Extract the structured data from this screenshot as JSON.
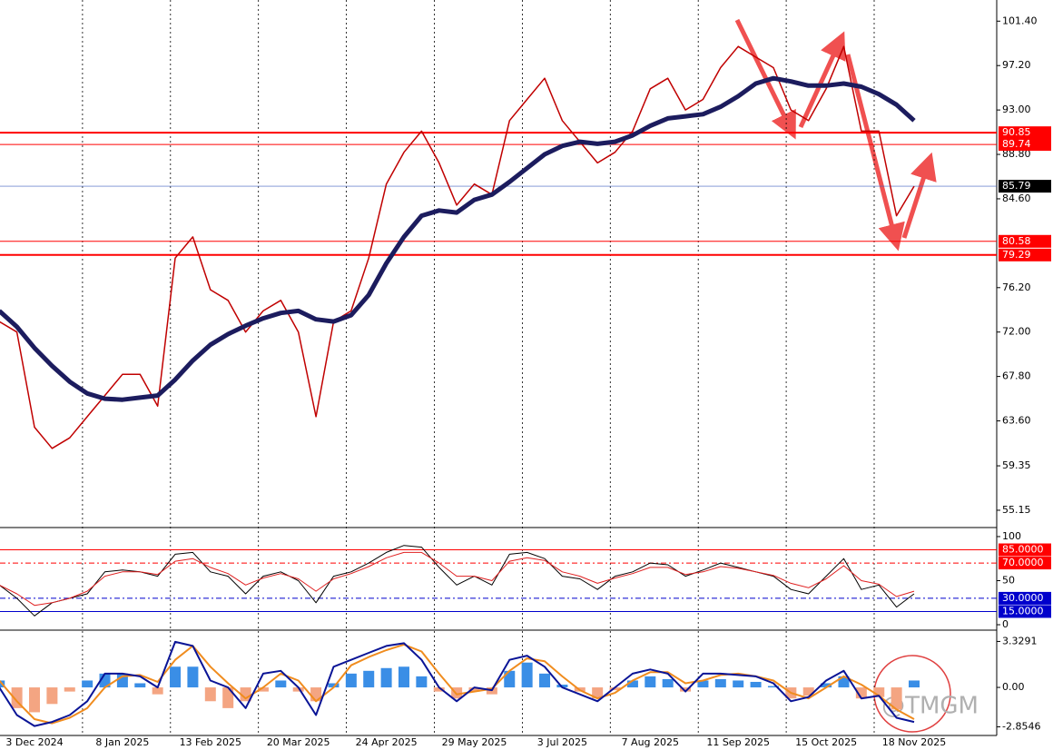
{
  "chart_data": [
    {
      "type": "line",
      "panel": "price",
      "categories": [
        null,
        null,
        "3 Dec 2024",
        null,
        null,
        null,
        null,
        "8 Jan 2025",
        null,
        null,
        null,
        null,
        "13 Feb 2025",
        null,
        null,
        null,
        null,
        "20 Mar 2025",
        null,
        null,
        null,
        null,
        "24 Apr 2025",
        null,
        null,
        null,
        null,
        "29 May 2025",
        null,
        null,
        null,
        null,
        "3 Jul 2025",
        null,
        null,
        null,
        null,
        "7 Aug 2025",
        null,
        null,
        null,
        null,
        "11 Sep 2025",
        null,
        null,
        null,
        null,
        "15 Oct 2025",
        null,
        null,
        null,
        null,
        "18 Nov 2025"
      ],
      "series": [
        {
          "color": "#c00000",
          "width": 1.5,
          "values": [
            73,
            72,
            63,
            61,
            62,
            64,
            66,
            68,
            68,
            65,
            79,
            81,
            76,
            75,
            72,
            74,
            75,
            72,
            64,
            73,
            74,
            79,
            86,
            89,
            91,
            88,
            84,
            86,
            85,
            92,
            94,
            96,
            92,
            90,
            88,
            89,
            91,
            95,
            96,
            93,
            94,
            97,
            99,
            98,
            97,
            93,
            92,
            95,
            99,
            91,
            91,
            83,
            85.79
          ]
        },
        {
          "color": "#1c1c5e",
          "width": 5,
          "values": [
            74,
            72.5,
            70.5,
            68.8,
            67.3,
            66.2,
            65.7,
            65.6,
            65.8,
            66,
            67.5,
            69.3,
            70.8,
            71.8,
            72.6,
            73.3,
            73.8,
            74,
            73.2,
            73,
            73.6,
            75.5,
            78.5,
            81,
            83,
            83.5,
            83.3,
            84.5,
            85,
            86.2,
            87.5,
            88.8,
            89.6,
            90,
            89.8,
            90,
            90.6,
            91.5,
            92.2,
            92.4,
            92.6,
            93.3,
            94.3,
            95.5,
            96,
            95.7,
            95.3,
            95.3,
            95.5,
            95.2,
            94.5,
            93.5,
            92
          ]
        }
      ],
      "ylim": [
        53.6,
        103.4
      ],
      "yticks": [
        {
          "value": 101.4,
          "label": "101.40"
        },
        {
          "value": 97.2,
          "label": "97.20"
        },
        {
          "value": 93,
          "label": "93.00"
        },
        {
          "value": 88.8,
          "label": "88.80"
        },
        {
          "value": 84.6,
          "label": "84.60"
        },
        {
          "value": 76.2,
          "label": "76.20"
        },
        {
          "value": 72,
          "label": "72.00"
        },
        {
          "value": 67.8,
          "label": "67.80"
        },
        {
          "value": 63.6,
          "label": "63.60"
        },
        59.35,
        55.15
      ],
      "levels": [
        {
          "value": 90.85,
          "color": "#ff0000",
          "style": "solid",
          "width": 2
        },
        {
          "value": 89.74,
          "color": "#ff0000",
          "style": "solid",
          "width": 1
        },
        {
          "value": 85.79,
          "color": "#4060c0",
          "style": "solid",
          "width": 0.6,
          "label_color": "#000000"
        },
        {
          "value": 80.58,
          "color": "#ff0000",
          "style": "solid",
          "width": 1
        },
        {
          "value": 79.29,
          "color": "#ff0000",
          "style": "solid",
          "width": 2
        }
      ],
      "grid": true
    },
    {
      "type": "line",
      "panel": "rsi",
      "series": [
        {
          "color": "#000000",
          "width": 1,
          "values": [
            45,
            30,
            10,
            25,
            30,
            35,
            60,
            62,
            60,
            55,
            80,
            82,
            60,
            55,
            35,
            55,
            60,
            50,
            25,
            55,
            60,
            70,
            82,
            90,
            88,
            65,
            45,
            55,
            45,
            80,
            82,
            75,
            55,
            52,
            40,
            55,
            60,
            70,
            68,
            55,
            62,
            70,
            65,
            60,
            55,
            40,
            35,
            55,
            75,
            40,
            45,
            20,
            35
          ]
        },
        {
          "color": "#e02020",
          "width": 1,
          "values": [
            45,
            35,
            22,
            25,
            30,
            38,
            55,
            60,
            60,
            57,
            72,
            75,
            65,
            58,
            45,
            53,
            58,
            52,
            38,
            52,
            58,
            66,
            76,
            82,
            82,
            70,
            55,
            55,
            50,
            72,
            76,
            73,
            60,
            55,
            47,
            53,
            58,
            65,
            65,
            57,
            60,
            66,
            64,
            60,
            56,
            47,
            42,
            52,
            67,
            50,
            46,
            32,
            38
          ]
        }
      ],
      "ylim": [
        -4.1,
        108.2
      ],
      "yticks": [
        100,
        50,
        0
      ],
      "levels": [
        {
          "value": 85,
          "label": "85.0000",
          "color": "#ff0000",
          "style": "solid",
          "width": 1
        },
        {
          "value": 70,
          "label": "70.0000",
          "color": "#ff0000",
          "style": "dashdot",
          "width": 1
        },
        {
          "value": 30,
          "label": "30.0000",
          "color": "#0000cc",
          "style": "dashdot",
          "width": 1
        },
        {
          "value": 15,
          "label": "15.0000",
          "color": "#0000cc",
          "style": "solid",
          "width": 1
        }
      ]
    },
    {
      "type": "combo",
      "panel": "macd",
      "bars": {
        "color": "#3a8ee6",
        "negative_color": "#f4a582",
        "values": [
          0.5,
          -1.5,
          -1.8,
          -1.2,
          -0.3,
          0.5,
          1,
          1,
          0.3,
          -0.5,
          1.5,
          1.5,
          -1,
          -1.5,
          -1,
          -0.3,
          0.5,
          -0.3,
          -1,
          0.3,
          1,
          1.2,
          1.4,
          1.5,
          0.8,
          -0.3,
          -0.8,
          -0.3,
          -0.5,
          1.2,
          1.8,
          1,
          0.2,
          -0.3,
          -0.8,
          -0.2,
          0.5,
          0.8,
          0.6,
          -0.3,
          0.5,
          0.6,
          0.5,
          0.4,
          0.1,
          -0.8,
          -0.6,
          0.3,
          0.8,
          -0.8,
          -0.7,
          -1.6,
          0.5
        ]
      },
      "series": [
        {
          "color": "#f08c1e",
          "width": 2,
          "values": [
            0.5,
            -1,
            -2.3,
            -2.6,
            -2.2,
            -1.5,
            0,
            0.8,
            0.9,
            0.4,
            2,
            3,
            1.5,
            0.3,
            -0.8,
            0,
            1,
            0.5,
            -1,
            0,
            1.6,
            2.2,
            2.7,
            3.1,
            2.6,
            1,
            -0.5,
            -0.3,
            -0.1,
            1.2,
            2.1,
            1.9,
            0.8,
            -0.2,
            -0.8,
            -0.4,
            0.5,
            1.1,
            1.1,
            0.3,
            0.5,
            0.9,
            1,
            0.8,
            0.5,
            -0.4,
            -0.8,
            0,
            0.8,
            0.2,
            -0.6,
            -1.6,
            -2.3
          ]
        },
        {
          "color": "#0a1496",
          "width": 2,
          "values": [
            0,
            -2,
            -2.8,
            -2.5,
            -2,
            -1,
            1,
            1,
            0.8,
            0,
            3.3,
            3,
            0.5,
            0,
            -1.5,
            1,
            1.2,
            0,
            -2,
            1.5,
            2,
            2.5,
            3,
            3.2,
            2,
            0,
            -1,
            0,
            -0.2,
            2,
            2.3,
            1.5,
            0,
            -0.5,
            -1,
            0,
            1,
            1.3,
            1,
            -0.3,
            1,
            1,
            0.9,
            0.8,
            0.3,
            -1,
            -0.7,
            0.5,
            1.2,
            -0.8,
            -0.6,
            -2.2,
            -2.5
          ]
        }
      ],
      "ylim": [
        -3.35,
        3.95
      ],
      "yticks": [
        3.3291,
        {
          "value": 0,
          "label": "0.00"
        },
        -2.8546
      ]
    }
  ],
  "watermark": "@TMGM"
}
